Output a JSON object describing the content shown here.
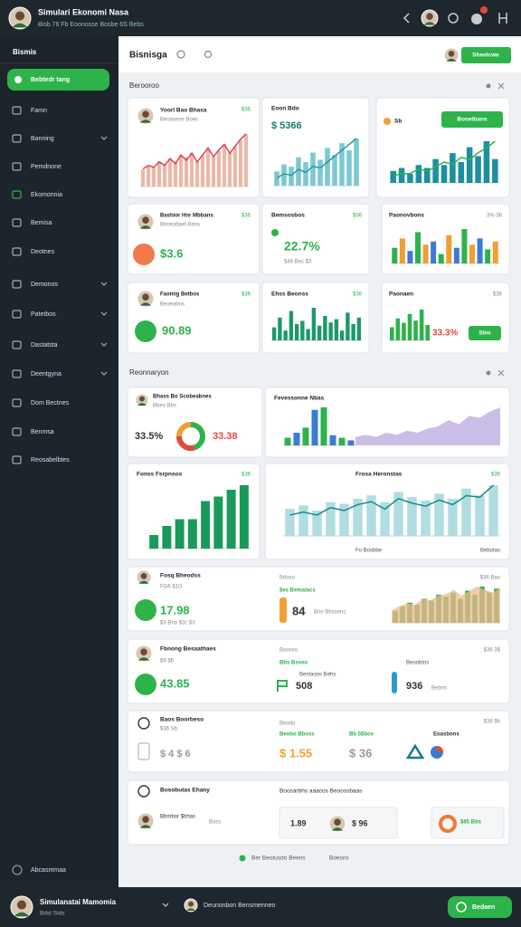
{
  "topbar": {
    "title": "Simulari Ekonomi Nasa",
    "subtitle": "Bisb 76 Fb Eoonosse Bosbe 6S Bebs"
  },
  "sidebar": {
    "heading": "Bismis",
    "items": [
      "Bebtedr tang",
      "Famn",
      "Banning",
      "Pemdnone",
      "Ekomonnia",
      "Bemisa",
      "Deotnes",
      "Demonos",
      "Patetbos",
      "Dastatsta",
      "Deentgyna",
      "Dom Bectnes",
      "Benmsa",
      "Reosabelbtes"
    ],
    "bottom": "Abcasmmaa"
  },
  "header": {
    "title": "Bisnisga",
    "button": "Sheelcwe"
  },
  "sections": [
    "Berooroo",
    "Reonnaryon"
  ],
  "cards": [
    {
      "texts": [
        "Yoorl Bao Bhasa",
        "$36",
        "Beoasese Boes"
      ],
      "chart": {
        "bars": [
          8,
          10,
          9,
          12,
          11,
          13,
          12,
          15,
          14,
          16,
          12,
          15,
          18,
          14,
          17,
          20,
          16,
          19,
          22,
          25
        ],
        "line": [
          10,
          12,
          11,
          14,
          12,
          16,
          13,
          18,
          15,
          19,
          14,
          18,
          22,
          17,
          21,
          24,
          19,
          23,
          27,
          30
        ],
        "bar_color": "#eab8a8",
        "line_color": "#e0405a"
      }
    },
    {
      "texts": [
        "Eoon Bdo",
        "$ 5366"
      ],
      "chart": {
        "bars": [
          6,
          9,
          8,
          12,
          10,
          14,
          11,
          16,
          13,
          18,
          15,
          20
        ],
        "line": [
          5,
          8,
          7,
          11,
          9,
          13,
          12,
          16,
          20,
          24,
          28,
          32
        ],
        "bar_color": "#7cc8d4",
        "line_color": "#2a9aa0"
      }
    },
    {
      "texts": [
        "Sb",
        "Bosetbans"
      ],
      "chart": {
        "bars": [
          4,
          5,
          3,
          6,
          5,
          8,
          6,
          10,
          7,
          12,
          9,
          14,
          8
        ],
        "line": [
          3,
          4,
          4,
          6,
          5,
          7,
          9,
          8,
          11,
          10,
          13,
          15,
          18
        ],
        "bar_color": "#1d8fa3",
        "line_color": "#2db34a"
      }
    },
    {
      "texts": [
        "Bashior Hnr Mbbans",
        "$36",
        "Beoeabaet Bess",
        "$3.6"
      ]
    },
    {
      "texts": [
        "Bemsosbos",
        "$36",
        "22.7%",
        "$48 Bec $3"
      ]
    },
    {
      "texts": [
        "Paonovbons",
        "3% 38"
      ],
      "chart": {
        "bars": [
          10,
          16,
          8,
          20,
          12,
          14,
          6,
          18,
          10,
          22,
          12,
          16,
          9,
          14
        ],
        "bar_colors": [
          "#2db34a",
          "#f0a030",
          "#3a7bd5"
        ]
      }
    },
    {
      "texts": [
        "Faomig Betbos",
        "$36",
        "Beoeabns",
        "90.89"
      ]
    },
    {
      "texts": [
        "Ehss Beonss",
        "$36"
      ],
      "chart": {
        "bars": [
          8,
          14,
          6,
          18,
          10,
          12,
          7,
          20,
          9,
          15,
          11,
          13,
          6,
          17,
          10,
          14
        ],
        "bar_color": "#1a9a6a"
      }
    },
    {
      "texts": [
        "Paonaen",
        "$36",
        "33.3%",
        "Sbio"
      ],
      "chart": {
        "bars": [
          6,
          10,
          8,
          12,
          9,
          14,
          7
        ],
        "bar_color": "#2db34a"
      }
    },
    {
      "texts": [
        "Bhass Bo Scobeabnes",
        "Bbeo Bbs",
        "33.5%",
        "33.38"
      ],
      "chart": {
        "donut": [
          45,
          30,
          25
        ],
        "colors": [
          "#2db34a",
          "#e04a3a",
          "#f0a030"
        ]
      }
    },
    {
      "texts": [
        "Fevessonne Nbas"
      ],
      "chart": {
        "bars": [
          6,
          10,
          14,
          28,
          30,
          8,
          6,
          4
        ],
        "bar_colors": [
          "#2db34a",
          "#3a7bd5"
        ],
        "area": [
          4,
          5,
          4,
          6,
          5,
          7,
          6,
          8,
          9,
          12,
          10,
          14,
          13,
          16,
          18
        ],
        "area_color": "#b8a8e0"
      }
    },
    {
      "texts": [
        "Fonss Fsrpnsos",
        "$36"
      ],
      "chart": {
        "bars": [
          12,
          20,
          26,
          26,
          42,
          46,
          52,
          56
        ],
        "bar_color": "#1a9a5a"
      }
    },
    {
      "texts": [
        "Frosa Heronstas",
        "$36",
        "Fo Bosbbe",
        "Bebotas"
      ],
      "chart": {
        "bars": [
          16,
          18,
          15,
          20,
          19,
          22,
          24,
          20,
          26,
          23,
          21,
          25,
          22,
          28,
          24,
          30
        ],
        "line": [
          14,
          16,
          14,
          19,
          17,
          21,
          23,
          18,
          25,
          22,
          20,
          24,
          21,
          27,
          26,
          34
        ],
        "bar_color": "#b0dde2",
        "line_color": "#1a8a8a"
      }
    },
    {
      "texts": [
        "Fosq Bheodss",
        "FG6 $1G",
        "17.98",
        "$3 Bno $3c $3",
        "Bdoso",
        "$es Bemalacs",
        "84",
        "Bno Bhssenc",
        "$36 Bao"
      ],
      "chart": {
        "bars": [
          6,
          8,
          10,
          9,
          12,
          11,
          14,
          13,
          15,
          12,
          16,
          14,
          18,
          15,
          17
        ],
        "area": [
          8,
          11,
          13,
          12,
          16,
          15,
          18,
          19,
          22,
          18,
          21,
          24,
          22,
          20,
          23
        ],
        "bar_color": "#2db34a",
        "area_color": "#f0b890"
      }
    },
    {
      "texts": [
        "Fbnong Besaathaes",
        "$9 $6",
        "43.85",
        "Boosso",
        "Bbs Bsseo",
        "Beniaoos Behs",
        "508",
        "$36 3$",
        "Beoobtos",
        "936",
        "Bebns"
      ]
    },
    {
      "texts": [
        "Baos Boorbeso",
        "$36 Sb",
        "$ 4 $ 6",
        "Beodo",
        "Beobo Bboss",
        "$ 1.55",
        "Bb 5$bos",
        "$ 36",
        "Eoasbons",
        "$36 $h"
      ]
    },
    {
      "texts": [
        "Bosobutas Ehany",
        "Bbmbor $bhas",
        "Boss",
        "Boosarbhs aaacos Beoossbaas",
        "1.89",
        "$ 96",
        "$85 Bbs"
      ]
    }
  ],
  "footer": {
    "text": "Ber Beotusdo Beens",
    "link": "Boesns"
  },
  "bottombar": {
    "name": "Simulanatai Mamomia",
    "sub": "Bdst Sids",
    "center": "Deunonbon Bensmenneo",
    "button": "Bedaen"
  }
}
